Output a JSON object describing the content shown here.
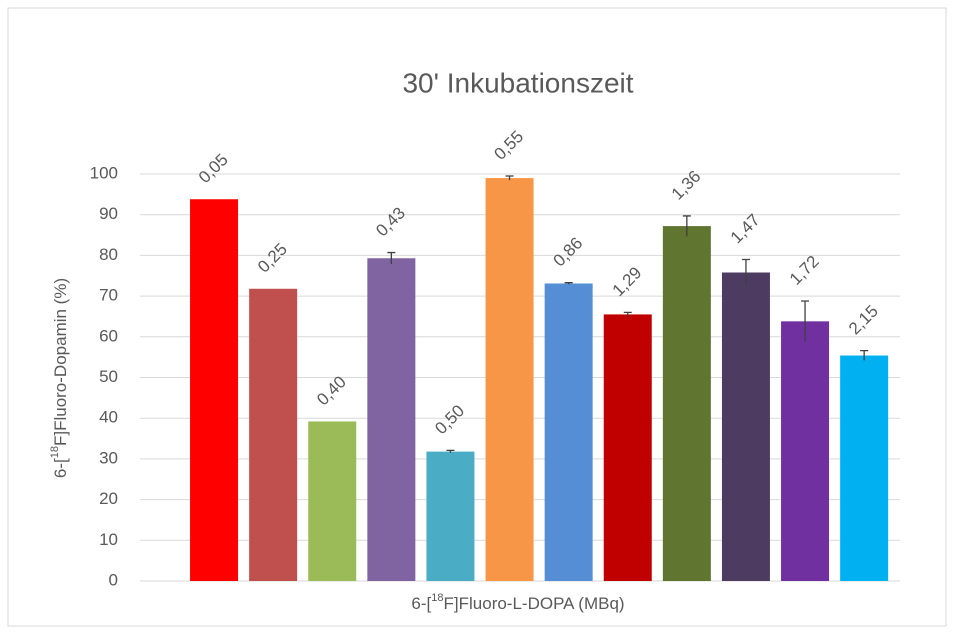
{
  "chart_data": {
    "type": "bar",
    "title": "30' Inkubationszeit",
    "y_label": [
      "6-[",
      "18",
      "F]Fluoro-Dopamin (%)"
    ],
    "x_label": [
      "6-[",
      "18",
      "F]Fluoro-L-DOPA (MBq)"
    ],
    "categories": [
      "0,05",
      "0,25",
      "0,40",
      "0,43",
      "0,50",
      "0,55",
      "0,86",
      "1,29",
      "1,36",
      "1,47",
      "1,72",
      "2,15"
    ],
    "values": [
      93.8,
      71.8,
      39.2,
      79.3,
      31.8,
      99.0,
      73.1,
      65.5,
      87.2,
      75.8,
      63.8,
      55.4
    ],
    "errors": [
      0,
      0,
      0,
      1.4,
      0.3,
      0.5,
      0.2,
      0.5,
      2.5,
      3.2,
      5.0,
      1.2
    ],
    "colors": [
      "#ff0000",
      "#c0504d",
      "#9bbb59",
      "#8064a2",
      "#4bacc6",
      "#f79646",
      "#558ed5",
      "#c00000",
      "#5f7530",
      "#4d3b62",
      "#7030a0",
      "#00b0f0"
    ],
    "ylim": [
      0,
      100
    ],
    "yticks": [
      0,
      10,
      20,
      30,
      40,
      50,
      60,
      70,
      80,
      90,
      100
    ],
    "grid": true
  }
}
